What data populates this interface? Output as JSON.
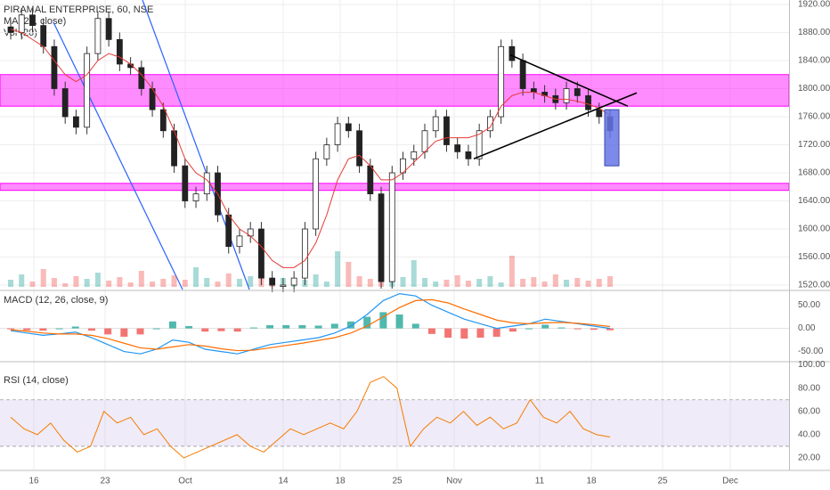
{
  "chart_data": [
    {
      "type": "candlestick",
      "title": "PIRAMAL ENTERPRISE, 60, NSE",
      "legend_lines": [
        "PIRAMAL ENTERPRISE, 60, NSE",
        "MA (25, close)",
        "Vol (20)"
      ],
      "x_ticks": [
        "16",
        "23",
        "Oct",
        "14",
        "18",
        "25",
        "Nov",
        "11",
        "18",
        "25",
        "Dec"
      ],
      "y_ticks": [
        "1920.00",
        "1880.00",
        "1840.00",
        "1800.00",
        "1760.00",
        "1720.00",
        "1680.00",
        "1640.00",
        "1600.00",
        "1560.00",
        "1520.00"
      ],
      "ylim": [
        1515,
        1925
      ],
      "grid": true,
      "price_sketch": [
        1880,
        1905,
        1890,
        1860,
        1800,
        1760,
        1745,
        1850,
        1900,
        1870,
        1835,
        1830,
        1800,
        1770,
        1740,
        1690,
        1640,
        1650,
        1680,
        1620,
        1575,
        1590,
        1600,
        1530,
        1520,
        1520,
        1530,
        1600,
        1700,
        1720,
        1750,
        1740,
        1690,
        1650,
        1525,
        1680,
        1700,
        1710,
        1740,
        1760,
        1720,
        1710,
        1700,
        1740,
        1760,
        1860,
        1840,
        1800,
        1795,
        1790,
        1780,
        1800,
        1790,
        1770,
        1760,
        1740
      ],
      "ma_sketch": [
        1885,
        1880,
        1870,
        1860,
        1840,
        1820,
        1810,
        1820,
        1840,
        1850,
        1845,
        1835,
        1820,
        1800,
        1775,
        1740,
        1700,
        1680,
        1670,
        1650,
        1620,
        1600,
        1590,
        1575,
        1555,
        1545,
        1545,
        1555,
        1580,
        1620,
        1670,
        1700,
        1705,
        1690,
        1670,
        1670,
        1680,
        1695,
        1710,
        1725,
        1730,
        1730,
        1730,
        1735,
        1745,
        1775,
        1790,
        1795,
        1795,
        1790,
        1785,
        1785,
        1782,
        1778,
        1772,
        1762
      ],
      "annotations": {
        "resistance_zone": [
          1775,
          1820
        ],
        "support_zone": [
          1655,
          1665
        ],
        "target_box": [
          1690,
          1770
        ],
        "zone_color": "#ff00ff",
        "target_color": "#6675e6",
        "trendline_color": "#2962ff",
        "pattern_color": "#000000"
      },
      "up_color": "#26a69a",
      "down_color": "#ef5350"
    },
    {
      "type": "line",
      "title": "MACD (12, 26, close, 9)",
      "y_ticks": [
        "50.00",
        "0.00",
        "-50.00"
      ],
      "ylim": [
        -70,
        80
      ],
      "macd_sketch": [
        -5,
        -10,
        -15,
        -12,
        -8,
        -20,
        -35,
        -50,
        -55,
        -45,
        -25,
        -30,
        -45,
        -50,
        -55,
        -45,
        -35,
        -30,
        -25,
        -20,
        -10,
        5,
        30,
        60,
        75,
        70,
        50,
        35,
        20,
        10,
        0,
        5,
        10,
        20,
        15,
        10,
        5,
        0
      ],
      "signal_sketch": [
        -3,
        -6,
        -10,
        -12,
        -12,
        -15,
        -22,
        -32,
        -42,
        -45,
        -40,
        -35,
        -38,
        -44,
        -48,
        -47,
        -42,
        -37,
        -32,
        -26,
        -20,
        -10,
        5,
        25,
        45,
        60,
        62,
        55,
        42,
        30,
        18,
        12,
        10,
        12,
        13,
        11,
        8,
        4
      ],
      "macd_color": "#2196f3",
      "signal_color": "#ff6d00"
    },
    {
      "type": "line",
      "title": "RSI (14, close)",
      "y_ticks": [
        "100.00",
        "80.00",
        "60.00",
        "40.00",
        "20.00"
      ],
      "ylim": [
        10,
        102
      ],
      "band": [
        30,
        70
      ],
      "rsi_sketch": [
        55,
        45,
        40,
        50,
        35,
        25,
        30,
        60,
        50,
        55,
        40,
        45,
        30,
        20,
        25,
        30,
        35,
        40,
        30,
        25,
        35,
        45,
        40,
        45,
        50,
        45,
        60,
        85,
        90,
        80,
        30,
        45,
        55,
        50,
        60,
        48,
        55,
        45,
        50,
        70,
        55,
        50,
        60,
        45,
        40,
        38
      ],
      "rsi_color": "#f57c00",
      "band_color": "#7e57c2"
    }
  ]
}
